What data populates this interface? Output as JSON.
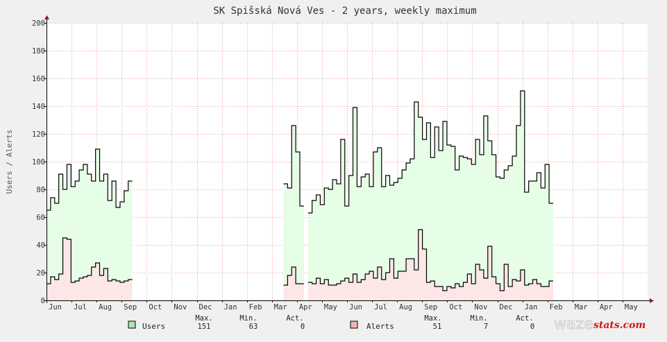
{
  "chart_data": {
    "type": "area",
    "title": "SK Spišská Nová Ves - 2 years, weekly maximum",
    "ylabel": "Users / Alerts",
    "ylim": [
      0,
      200
    ],
    "y_ticks": [
      0,
      20,
      40,
      60,
      80,
      100,
      120,
      140,
      160,
      180,
      200
    ],
    "month_ticks": [
      "Jun",
      "Jul",
      "Aug",
      "Sep",
      "Oct",
      "Nov",
      "Dec",
      "Jan",
      "Feb",
      "Mar",
      "Apr",
      "May",
      "Jun",
      "Jul",
      "Aug",
      "Sep",
      "Oct",
      "Nov",
      "Dec",
      "Jan",
      "Feb",
      "Mar",
      "Apr",
      "May"
    ],
    "grid": true,
    "series": [
      {
        "name": "Users",
        "color": "#000000",
        "fill": "#e6fde6",
        "values": [
          65,
          74,
          70,
          91,
          80,
          98,
          82,
          86,
          94,
          98,
          91,
          86,
          109,
          86,
          91,
          72,
          86,
          67,
          71,
          79,
          86,
          null,
          null,
          null,
          null,
          null,
          null,
          null,
          null,
          null,
          null,
          null,
          null,
          null,
          null,
          null,
          null,
          null,
          null,
          null,
          null,
          null,
          null,
          null,
          null,
          null,
          null,
          null,
          null,
          null,
          null,
          null,
          null,
          null,
          null,
          null,
          null,
          null,
          84,
          81,
          126,
          107,
          68,
          null,
          63,
          72,
          76,
          69,
          81,
          80,
          87,
          84,
          116,
          68,
          90,
          139,
          82,
          89,
          91,
          82,
          107,
          110,
          82,
          90,
          83,
          85,
          88,
          94,
          99,
          102,
          143,
          132,
          116,
          128,
          103,
          125,
          108,
          129,
          112,
          111,
          94,
          104,
          103,
          102,
          98,
          116,
          105,
          133,
          115,
          105,
          89,
          88,
          94,
          97,
          104,
          126,
          151,
          78,
          86,
          86,
          92,
          81,
          98,
          70
        ],
        "max": "151",
        "min": "63",
        "act": "0"
      },
      {
        "name": "Alerts",
        "color": "#000000",
        "fill": "#fde6e6",
        "values": [
          12,
          17,
          15,
          19,
          45,
          44,
          13,
          14,
          16,
          17,
          18,
          24,
          27,
          18,
          23,
          14,
          15,
          14,
          13,
          14,
          15,
          null,
          null,
          null,
          null,
          null,
          null,
          null,
          null,
          null,
          null,
          null,
          null,
          null,
          null,
          null,
          null,
          null,
          null,
          null,
          null,
          null,
          null,
          null,
          null,
          null,
          null,
          null,
          null,
          null,
          null,
          null,
          null,
          null,
          null,
          null,
          null,
          null,
          11,
          18,
          24,
          12,
          12,
          null,
          13,
          12,
          16,
          12,
          15,
          11,
          11,
          12,
          14,
          16,
          13,
          19,
          13,
          15,
          19,
          21,
          16,
          24,
          15,
          20,
          30,
          16,
          21,
          21,
          30,
          30,
          22,
          51,
          37,
          13,
          14,
          10,
          10,
          7,
          10,
          9,
          12,
          10,
          13,
          19,
          12,
          26,
          22,
          16,
          39,
          17,
          12,
          7,
          26,
          10,
          15,
          14,
          22,
          11,
          12,
          15,
          12,
          10,
          10,
          14
        ],
        "max": "51",
        "min": "7",
        "act": "0"
      }
    ],
    "legend_headers": {
      "max": "Max.",
      "min": "Min.",
      "act": "Act."
    },
    "legend_placement": "bottom",
    "watermark": {
      "word": "waze",
      "accent": "stats.com"
    }
  }
}
